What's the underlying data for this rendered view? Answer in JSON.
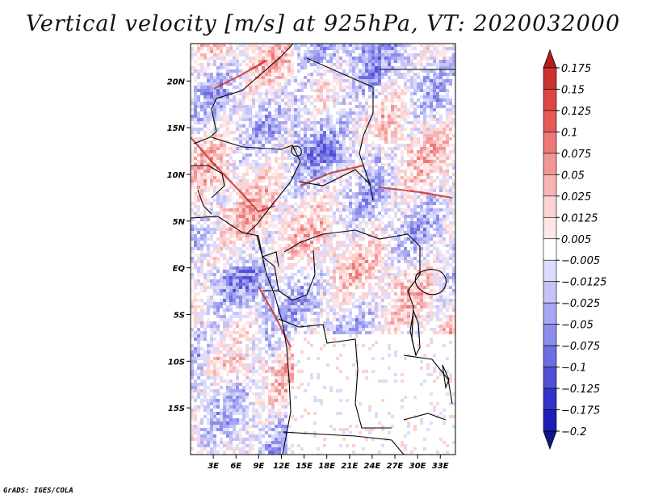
{
  "title": "Vertical velocity [m/s] at 925hPa, VT: 2020032000",
  "credit": "GrADS: IGES/COLA",
  "map": {
    "lon_range": [
      0,
      35
    ],
    "lat_range": [
      -20,
      24
    ],
    "lon_ticks": [
      {
        "value": 3,
        "label": "3E"
      },
      {
        "value": 6,
        "label": "6E"
      },
      {
        "value": 9,
        "label": "9E"
      },
      {
        "value": 12,
        "label": "12E"
      },
      {
        "value": 15,
        "label": "15E"
      },
      {
        "value": 18,
        "label": "18E"
      },
      {
        "value": 21,
        "label": "21E"
      },
      {
        "value": 24,
        "label": "24E"
      },
      {
        "value": 27,
        "label": "27E"
      },
      {
        "value": 30,
        "label": "30E"
      },
      {
        "value": 33,
        "label": "33E"
      }
    ],
    "lat_ticks": [
      {
        "value": 20,
        "label": "20N"
      },
      {
        "value": 15,
        "label": "15N"
      },
      {
        "value": 10,
        "label": "10N"
      },
      {
        "value": 5,
        "label": "5N"
      },
      {
        "value": 0,
        "label": "EQ"
      },
      {
        "value": -5,
        "label": "5S"
      },
      {
        "value": -10,
        "label": "10S"
      },
      {
        "value": -15,
        "label": "15S"
      }
    ]
  },
  "colorbar": {
    "levels": [
      "0.175",
      "0.15",
      "0.125",
      "0.1",
      "0.075",
      "0.05",
      "0.025",
      "0.0125",
      "0.005",
      "−0.005",
      "−0.0125",
      "−0.025",
      "−0.05",
      "−0.075",
      "−0.1",
      "−0.125",
      "−0.175",
      "−0.2"
    ],
    "colors": [
      "#b41e1e",
      "#cd3232",
      "#dc4646",
      "#e65a5a",
      "#ee7878",
      "#f39696",
      "#f8b4b4",
      "#fcd2d2",
      "#fee6e6",
      "#ffffff",
      "#dcdcfc",
      "#c4c4f8",
      "#a8a8f2",
      "#8c8cec",
      "#6e6ee2",
      "#5050d6",
      "#3232c8",
      "#1e1eb4",
      "#14148c"
    ]
  },
  "chart_data": {
    "type": "heatmap",
    "title": "Vertical velocity [m/s] at 925hPa, VT: 2020032000",
    "variable": "vertical velocity",
    "units": "m/s",
    "level": "925hPa",
    "valid_time": "2020032000",
    "x_range": [
      0,
      35
    ],
    "y_range": [
      -20,
      24
    ],
    "contour_levels": [
      -0.2,
      -0.175,
      -0.125,
      -0.1,
      -0.075,
      -0.05,
      -0.025,
      -0.0125,
      -0.005,
      0.005,
      0.0125,
      0.025,
      0.05,
      0.075,
      0.1,
      0.125,
      0.15,
      0.175
    ]
  }
}
